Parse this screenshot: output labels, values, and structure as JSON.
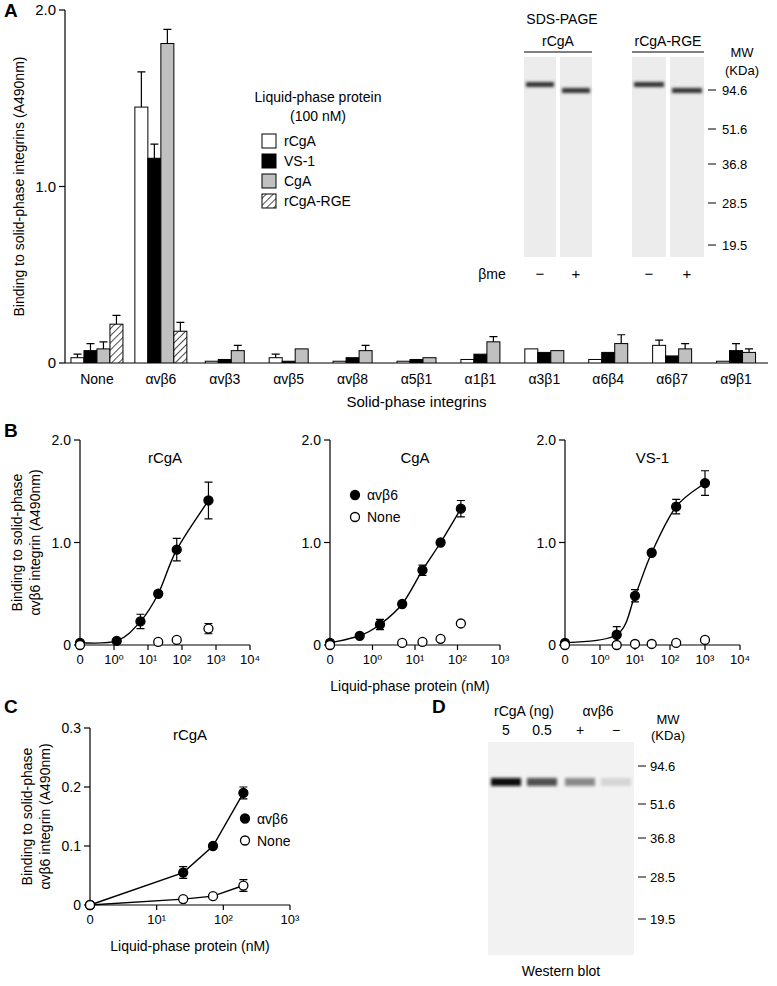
{
  "panel_labels": [
    "A",
    "B",
    "C",
    "D"
  ],
  "chart_data": [
    {
      "type": "bar",
      "y_label": "Binding to solid-phase integrins (A490nm)",
      "x_label": "Solid-phase integrins",
      "legend_title": [
        "Liquid-phase protein",
        "(100 nM)"
      ],
      "legend": "upper left",
      "categories": [
        "None",
        "αvβ6",
        "αvβ3",
        "αvβ5",
        "αvβ8",
        "α5β1",
        "α1β1",
        "α3β1",
        "α6β4",
        "α6β7",
        "α9β1"
      ],
      "ylim": [
        0,
        2
      ],
      "yticks": [
        0,
        {
          "value": 1,
          "label": "1.0"
        },
        {
          "value": 2,
          "label": "2.0"
        }
      ],
      "series": [
        {
          "name": "rCgA",
          "color": "#ffffff",
          "values": [
            0.03,
            1.45,
            0.01,
            0.03,
            0.01,
            0.01,
            0.02,
            0.08,
            0.02,
            0.1,
            0.01
          ],
          "errors": [
            0.02,
            0.2,
            null,
            0.02,
            null,
            null,
            null,
            null,
            null,
            0.03,
            null
          ]
        },
        {
          "name": "VS-1",
          "color": "#000000",
          "values": [
            0.07,
            1.16,
            0.02,
            0.01,
            0.03,
            0.02,
            0.05,
            0.06,
            0.06,
            0.04,
            0.07
          ],
          "errors": [
            0.04,
            0.08,
            null,
            null,
            null,
            null,
            null,
            null,
            null,
            null,
            0.04
          ]
        },
        {
          "name": "CgA",
          "color": "#c0c0c0",
          "values": [
            0.08,
            1.81,
            0.07,
            0.08,
            0.07,
            0.03,
            0.12,
            0.07,
            0.11,
            0.08,
            0.06
          ],
          "errors": [
            0.04,
            0.08,
            0.03,
            null,
            0.03,
            null,
            0.03,
            null,
            0.05,
            0.03,
            0.02
          ]
        },
        {
          "name": "rCgA-RGE",
          "color": "#ffffff",
          "line_style": "hatched",
          "values": [
            0.22,
            0.18,
            null,
            null,
            null,
            null,
            null,
            null,
            null,
            null,
            null
          ],
          "errors": [
            0.05,
            0.05,
            null,
            null,
            null,
            null,
            null,
            null,
            null,
            null,
            null
          ]
        }
      ]
    },
    {
      "type": "line",
      "title": "rCgA",
      "y_label": [
        "Binding to solid-phase",
        "αvβ6 integrin (A490nm)"
      ],
      "log": "x",
      "xlim": [
        0,
        10000
      ],
      "xticks": [
        0,
        {
          "value": 1,
          "label": "10⁰"
        },
        {
          "value": 10,
          "label": "10¹"
        },
        {
          "value": 100,
          "label": "10²"
        },
        {
          "value": 1000,
          "label": "10³"
        },
        {
          "value": 10000,
          "label": "10⁴"
        }
      ],
      "ylim": [
        0,
        2
      ],
      "yticks": [
        0,
        {
          "value": 1,
          "label": "1.0"
        },
        {
          "value": 2,
          "label": "2.0"
        }
      ],
      "series": [
        {
          "name": "αvβ6",
          "color": "#000000",
          "marker": "filled-circle",
          "line_style": "smooth",
          "x": [
            0,
            1.2,
            6,
            20,
            70,
            600
          ],
          "values": [
            0.02,
            0.04,
            0.23,
            0.5,
            0.93,
            1.41
          ],
          "errors": [
            null,
            null,
            0.07,
            null,
            0.11,
            0.18
          ]
        },
        {
          "name": "None",
          "color": "#000000",
          "marker": "open-circle",
          "line_style": "none",
          "x": [
            0,
            20,
            70,
            600
          ],
          "values": [
            0,
            0.03,
            0.05,
            0.16
          ],
          "errors": [
            null,
            null,
            null,
            0.05
          ]
        }
      ]
    },
    {
      "type": "line",
      "title": "CgA",
      "x_label": "Liquid-phase protein (nM)",
      "log": "x",
      "legend": "upper left",
      "xlim": [
        0,
        1000
      ],
      "xticks": [
        0,
        {
          "value": 1,
          "label": "10⁰"
        },
        {
          "value": 10,
          "label": "10¹"
        },
        {
          "value": 100,
          "label": "10²"
        },
        {
          "value": 1000,
          "label": "10³"
        }
      ],
      "ylim": [
        0,
        2
      ],
      "yticks": [
        0,
        {
          "value": 1,
          "label": "1.0"
        },
        {
          "value": 2,
          "label": "2.0"
        }
      ],
      "series": [
        {
          "name": "αvβ6",
          "color": "#000000",
          "marker": "filled-circle",
          "line_style": "smooth",
          "x": [
            0,
            0.5,
            1.5,
            5,
            15,
            40,
            120
          ],
          "values": [
            0.02,
            0.09,
            0.2,
            0.4,
            0.73,
            1.0,
            1.33
          ],
          "errors": [
            null,
            null,
            0.05,
            null,
            0.05,
            null,
            0.08
          ]
        },
        {
          "name": "None",
          "color": "#000000",
          "marker": "open-circle",
          "line_style": "none",
          "x": [
            0,
            5,
            15,
            40,
            120
          ],
          "values": [
            0,
            0.02,
            0.03,
            0.06,
            0.21
          ]
        }
      ]
    },
    {
      "type": "line",
      "title": "VS-1",
      "log": "x",
      "xlim": [
        0,
        10000
      ],
      "xticks": [
        0,
        {
          "value": 1,
          "label": "10⁰"
        },
        {
          "value": 10,
          "label": "10¹"
        },
        {
          "value": 100,
          "label": "10²"
        },
        {
          "value": 1000,
          "label": "10³"
        },
        {
          "value": 10000,
          "label": "10⁴"
        }
      ],
      "ylim": [
        0,
        2
      ],
      "yticks": [
        0,
        {
          "value": 1,
          "label": "1.0"
        },
        {
          "value": 2,
          "label": "2.0"
        }
      ],
      "series": [
        {
          "name": "αvβ6",
          "color": "#000000",
          "marker": "filled-circle",
          "line_style": "smooth",
          "x": [
            0,
            3,
            10,
            30,
            150,
            1000
          ],
          "values": [
            0.02,
            0.1,
            0.48,
            0.9,
            1.35,
            1.58
          ],
          "errors": [
            null,
            0.08,
            0.06,
            null,
            0.07,
            0.12
          ]
        },
        {
          "name": "None",
          "color": "#000000",
          "marker": "open-circle",
          "line_style": "none",
          "x": [
            0,
            3,
            10,
            30,
            150,
            1000
          ],
          "values": [
            0,
            0,
            0.01,
            0.01,
            0.02,
            0.05
          ]
        }
      ]
    },
    {
      "type": "line",
      "title": "rCgA",
      "y_label": [
        "Binding to solid-phase",
        "αvβ6 integrin (A490nm)"
      ],
      "x_label": "Liquid-phase protein (nM)",
      "log": "x",
      "legend": "right",
      "xlim": [
        0,
        1000
      ],
      "xticks": [
        0,
        {
          "value": 10,
          "label": "10¹"
        },
        {
          "value": 100,
          "label": "10²"
        },
        {
          "value": 1000,
          "label": "10³"
        }
      ],
      "ylim": [
        0,
        0.3
      ],
      "yticks": [
        0,
        0.1,
        0.2,
        0.3
      ],
      "series": [
        {
          "name": "αvβ6",
          "color": "#000000",
          "marker": "filled-circle",
          "line_style": "solid",
          "x": [
            0,
            25,
            70,
            200
          ],
          "values": [
            0,
            0.055,
            0.1,
            0.19
          ],
          "errors": [
            null,
            0.01,
            null,
            0.01
          ]
        },
        {
          "name": "None",
          "color": "#000000",
          "marker": "open-circle",
          "line_style": "solid",
          "x": [
            0,
            25,
            70,
            200
          ],
          "values": [
            0,
            0.01,
            0.015,
            0.033
          ],
          "errors": [
            null,
            null,
            null,
            0.01
          ]
        }
      ]
    }
  ],
  "sds_page": {
    "title": "SDS-PAGE",
    "groups": [
      {
        "label": "rCgA",
        "lanes": [
          "−",
          "+"
        ]
      },
      {
        "label": "rCgA-RGE",
        "lanes": [
          "−",
          "+"
        ]
      }
    ],
    "row_label": "βme",
    "mw_title": [
      "MW",
      "(KDa)"
    ],
    "mw_markers": [
      94.6,
      51.6,
      36.8,
      28.5,
      19.5
    ]
  },
  "western_blot": {
    "title": "Western blot",
    "groups": [
      {
        "label": "rCgA (ng)",
        "lanes": [
          "5",
          "0.5"
        ]
      },
      {
        "label": "αvβ6",
        "lanes": [
          "+",
          "−"
        ]
      }
    ],
    "mw_title": [
      "MW",
      "(KDa)"
    ],
    "mw_markers": [
      94.6,
      51.6,
      36.8,
      28.5,
      19.5
    ]
  }
}
